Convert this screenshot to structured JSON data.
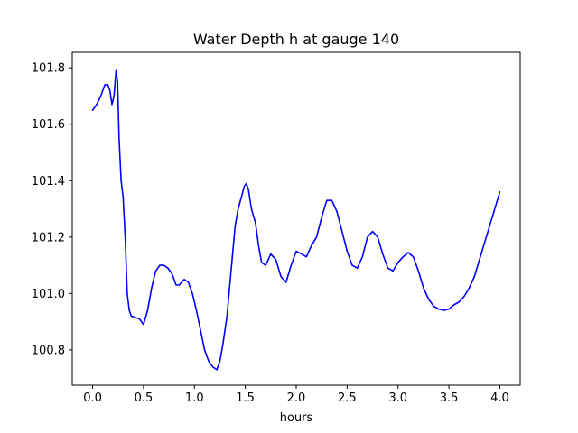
{
  "chart_data": {
    "type": "line",
    "title": "Water Depth h at gauge 140",
    "xlabel": "hours",
    "ylabel": "",
    "xlim": [
      -0.2,
      4.2
    ],
    "ylim": [
      100.675,
      101.855
    ],
    "xticks": [
      0.0,
      0.5,
      1.0,
      1.5,
      2.0,
      2.5,
      3.0,
      3.5,
      4.0
    ],
    "xtick_labels": [
      "0.0",
      "0.5",
      "1.0",
      "1.5",
      "2.0",
      "2.5",
      "3.0",
      "3.5",
      "4.0"
    ],
    "yticks": [
      100.8,
      101.0,
      101.2,
      101.4,
      101.6,
      101.8
    ],
    "ytick_labels": [
      "100.8",
      "101.0",
      "101.2",
      "101.4",
      "101.6",
      "101.8"
    ],
    "grid": false,
    "series": [
      {
        "color": "#0000ff",
        "x": [
          0.0,
          0.04,
          0.08,
          0.12,
          0.15,
          0.17,
          0.19,
          0.21,
          0.23,
          0.245,
          0.26,
          0.28,
          0.3,
          0.32,
          0.34,
          0.36,
          0.38,
          0.42,
          0.46,
          0.5,
          0.54,
          0.58,
          0.62,
          0.66,
          0.7,
          0.74,
          0.78,
          0.82,
          0.85,
          0.9,
          0.94,
          0.98,
          1.02,
          1.06,
          1.1,
          1.14,
          1.18,
          1.22,
          1.25,
          1.28,
          1.32,
          1.36,
          1.4,
          1.43,
          1.46,
          1.49,
          1.51,
          1.53,
          1.56,
          1.6,
          1.63,
          1.66,
          1.7,
          1.75,
          1.8,
          1.85,
          1.9,
          1.95,
          2.0,
          2.05,
          2.1,
          2.15,
          2.2,
          2.25,
          2.3,
          2.35,
          2.4,
          2.45,
          2.5,
          2.55,
          2.6,
          2.65,
          2.7,
          2.75,
          2.8,
          2.85,
          2.9,
          2.95,
          3.0,
          3.05,
          3.1,
          3.15,
          3.2,
          3.25,
          3.3,
          3.35,
          3.4,
          3.45,
          3.5,
          3.55,
          3.6,
          3.65,
          3.7,
          3.75,
          3.8,
          3.85,
          3.9,
          3.95,
          4.0
        ],
        "y": [
          101.65,
          101.67,
          101.7,
          101.74,
          101.74,
          101.72,
          101.67,
          101.7,
          101.79,
          101.75,
          101.55,
          101.4,
          101.34,
          101.2,
          101.0,
          100.94,
          100.92,
          100.915,
          100.91,
          100.89,
          100.94,
          101.02,
          101.08,
          101.1,
          101.1,
          101.09,
          101.07,
          101.03,
          101.03,
          101.05,
          101.04,
          101.0,
          100.94,
          100.87,
          100.8,
          100.76,
          100.74,
          100.73,
          100.76,
          100.82,
          100.92,
          101.08,
          101.24,
          101.3,
          101.34,
          101.38,
          101.39,
          101.37,
          101.3,
          101.25,
          101.17,
          101.11,
          101.1,
          101.14,
          101.12,
          101.06,
          101.04,
          101.1,
          101.15,
          101.14,
          101.13,
          101.17,
          101.2,
          101.27,
          101.33,
          101.33,
          101.29,
          101.22,
          101.15,
          101.1,
          101.09,
          101.13,
          101.2,
          101.22,
          101.2,
          101.14,
          101.09,
          101.08,
          101.11,
          101.13,
          101.145,
          101.13,
          101.08,
          101.02,
          100.98,
          100.955,
          100.945,
          100.94,
          100.945,
          100.96,
          100.97,
          100.99,
          101.02,
          101.06,
          101.12,
          101.18,
          101.24,
          101.3,
          101.36
        ]
      }
    ]
  }
}
